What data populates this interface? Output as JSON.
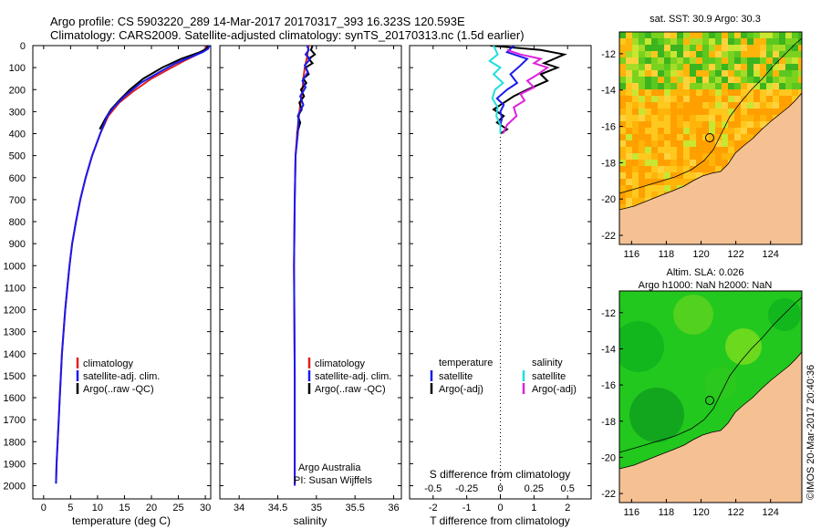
{
  "header": {
    "line1": "Argo profile: CS 5903220_289 14-Mar-2017 20170317_393 16.323S 120.593E",
    "line2": "Climatology: CARS2009. Satellite-adjusted climatology: synTS_20170313.nc (1.5d earlier)"
  },
  "credit": "©IMOS 20-Mar-2017 20:40:36",
  "colors": {
    "climatology": "#dd2222",
    "satellite": "#1a1aee",
    "argo": "#000000",
    "sat_salinity": "#22dddd",
    "argo_salinity": "#dd22dd",
    "land": "#f5c193"
  },
  "chart_data": [
    {
      "type": "line",
      "id": "temperature",
      "xlabel": "temperature (deg C)",
      "xlim": [
        -2,
        31
      ],
      "xticks": [
        "0",
        "5",
        "10",
        "15",
        "20",
        "25",
        "30"
      ],
      "ylim": [
        0,
        2060
      ],
      "yticks": [
        "0",
        "100",
        "200",
        "300",
        "400",
        "500",
        "600",
        "700",
        "800",
        "900",
        "1000",
        "1100",
        "1200",
        "1300",
        "1400",
        "1500",
        "1600",
        "1700",
        "1800",
        "1900",
        "2000"
      ],
      "legend": [
        "climatology",
        "satellite-adj. clim.",
        "Argo(..raw -QC)"
      ],
      "series": [
        {
          "name": "climatology",
          "color": "#dd2222",
          "points": [
            [
              30.3,
              0
            ],
            [
              29.8,
              20
            ],
            [
              28.5,
              40
            ],
            [
              26,
              70
            ],
            [
              23,
              110
            ],
            [
              20,
              150
            ],
            [
              16.5,
              210
            ],
            [
              14,
              260
            ],
            [
              12,
              320
            ],
            [
              10.5,
              400
            ],
            [
              9,
              500
            ],
            [
              7.8,
              600
            ],
            [
              6.8,
              700
            ],
            [
              6,
              800
            ],
            [
              5.3,
              900
            ],
            [
              4.8,
              1000
            ],
            [
              4.4,
              1100
            ],
            [
              4,
              1200
            ],
            [
              3.7,
              1300
            ],
            [
              3.4,
              1400
            ],
            [
              3.2,
              1500
            ],
            [
              3,
              1600
            ],
            [
              2.8,
              1700
            ],
            [
              2.6,
              1800
            ],
            [
              2.4,
              1900
            ],
            [
              2.3,
              1990
            ]
          ]
        },
        {
          "name": "Argo",
          "color": "#000000",
          "points": [
            [
              30.5,
              0
            ],
            [
              30.2,
              15
            ],
            [
              29,
              30
            ],
            [
              25.5,
              60
            ],
            [
              22,
              100
            ],
            [
              18.5,
              150
            ],
            [
              16,
              200
            ],
            [
              14,
              250
            ],
            [
              12.5,
              290
            ],
            [
              11.5,
              330
            ],
            [
              10.4,
              380
            ]
          ]
        },
        {
          "name": "satellite",
          "color": "#1a1aee",
          "points": [
            [
              30.8,
              0
            ],
            [
              30.5,
              15
            ],
            [
              29.5,
              30
            ],
            [
              27.5,
              50
            ],
            [
              24.5,
              80
            ],
            [
              21.5,
              120
            ],
            [
              18,
              170
            ],
            [
              15,
              230
            ],
            [
              13,
              280
            ],
            [
              11.8,
              320
            ],
            [
              10.5,
              400
            ],
            [
              9,
              500
            ],
            [
              7.8,
              600
            ],
            [
              6.8,
              700
            ],
            [
              6,
              800
            ],
            [
              5.3,
              900
            ],
            [
              4.8,
              1000
            ],
            [
              4.4,
              1100
            ],
            [
              4,
              1200
            ],
            [
              3.7,
              1300
            ],
            [
              3.4,
              1400
            ],
            [
              3.2,
              1500
            ],
            [
              3,
              1600
            ],
            [
              2.8,
              1700
            ],
            [
              2.6,
              1800
            ],
            [
              2.4,
              1900
            ],
            [
              2.3,
              1990
            ]
          ]
        }
      ]
    },
    {
      "type": "line",
      "id": "salinity",
      "xlabel": "salinity",
      "xlim": [
        33.75,
        36.1
      ],
      "xticks": [
        "34",
        "34.5",
        "35",
        "35.5",
        "36"
      ],
      "ylim": [
        0,
        2060
      ],
      "legend": [
        "climatology",
        "satellite-adj. clim.",
        "Argo(..raw -QC)"
      ],
      "annotation": [
        "Argo Australia",
        "PI: Susan Wijffels"
      ],
      "series": [
        {
          "name": "climatology",
          "color": "#dd2222",
          "points": [
            [
              34.9,
              0
            ],
            [
              34.88,
              50
            ],
            [
              34.85,
              100
            ],
            [
              34.83,
              150
            ],
            [
              34.82,
              200
            ],
            [
              34.8,
              250
            ],
            [
              34.78,
              300
            ],
            [
              34.75,
              400
            ],
            [
              34.73,
              500
            ],
            [
              34.72,
              700
            ],
            [
              34.71,
              1000
            ],
            [
              34.72,
              1500
            ],
            [
              34.72,
              2000
            ]
          ]
        },
        {
          "name": "Argo",
          "color": "#000000",
          "points": [
            [
              34.95,
              0
            ],
            [
              34.93,
              20
            ],
            [
              34.98,
              40
            ],
            [
              34.9,
              60
            ],
            [
              34.95,
              80
            ],
            [
              34.86,
              100
            ],
            [
              34.9,
              130
            ],
            [
              34.83,
              150
            ],
            [
              34.87,
              170
            ],
            [
              34.8,
              200
            ],
            [
              34.84,
              230
            ],
            [
              34.78,
              260
            ],
            [
              34.81,
              290
            ],
            [
              34.76,
              320
            ],
            [
              34.79,
              350
            ],
            [
              34.75,
              400
            ]
          ]
        },
        {
          "name": "satellite",
          "color": "#1a1aee",
          "points": [
            [
              34.88,
              0
            ],
            [
              34.9,
              20
            ],
            [
              34.86,
              40
            ],
            [
              34.92,
              60
            ],
            [
              34.85,
              90
            ],
            [
              34.89,
              120
            ],
            [
              34.82,
              160
            ],
            [
              34.86,
              190
            ],
            [
              34.79,
              230
            ],
            [
              34.83,
              270
            ],
            [
              34.77,
              310
            ],
            [
              34.76,
              400
            ],
            [
              34.73,
              500
            ],
            [
              34.72,
              700
            ],
            [
              34.71,
              1000
            ],
            [
              34.72,
              1500
            ],
            [
              34.72,
              2000
            ]
          ]
        }
      ]
    },
    {
      "type": "line",
      "id": "differences",
      "xlabel": "T difference from climatology",
      "x2label": "S difference from climatology",
      "xlim": [
        -2.7,
        2.7
      ],
      "xticks": [
        "-2",
        "-1",
        "0",
        "1",
        "2"
      ],
      "x2ticks": [
        "-0.5",
        "-0.25",
        "0",
        "0.25",
        "0.5"
      ],
      "ylim": [
        0,
        2060
      ],
      "legend_headers": [
        "temperature",
        "salinity"
      ],
      "legend": [
        "satellite",
        "Argo(-adj)",
        "satellite",
        "Argo(-adj)"
      ],
      "series": [
        {
          "name": "T Argo(-adj)",
          "color": "#000000",
          "points": [
            [
              -0.3,
              0
            ],
            [
              1.2,
              20
            ],
            [
              1.9,
              40
            ],
            [
              1.6,
              60
            ],
            [
              1.3,
              80
            ],
            [
              1.7,
              100
            ],
            [
              1.2,
              130
            ],
            [
              1.4,
              160
            ],
            [
              0.8,
              200
            ],
            [
              0.4,
              230
            ],
            [
              0.1,
              260
            ],
            [
              -0.2,
              290
            ],
            [
              0.1,
              320
            ],
            [
              -0.1,
              350
            ],
            [
              0.2,
              380
            ],
            [
              0,
              400
            ]
          ]
        },
        {
          "name": "T satellite",
          "color": "#1a1aee",
          "points": [
            [
              0.4,
              0
            ],
            [
              0.2,
              30
            ],
            [
              0.8,
              60
            ],
            [
              0.6,
              90
            ],
            [
              0.3,
              130
            ],
            [
              0.5,
              170
            ],
            [
              0.2,
              200
            ],
            [
              -0.1,
              240
            ],
            [
              0.1,
              270
            ],
            [
              0,
              300
            ],
            [
              0.05,
              330
            ],
            [
              0,
              360
            ],
            [
              0,
              400
            ]
          ]
        },
        {
          "name": "S satellite",
          "color": "#22dddd",
          "points": [
            [
              -0.05,
              0
            ],
            [
              -0.02,
              40
            ],
            [
              -0.08,
              70
            ],
            [
              0,
              100
            ],
            [
              -0.05,
              130
            ],
            [
              0.02,
              170
            ],
            [
              -0.04,
              200
            ],
            [
              -0.06,
              240
            ],
            [
              -0.02,
              280
            ],
            [
              -0.03,
              320
            ],
            [
              0,
              360
            ],
            [
              0,
              400
            ]
          ]
        },
        {
          "name": "S Argo(-adj)",
          "color": "#dd22dd",
          "points": [
            [
              0.05,
              20
            ],
            [
              0.15,
              40
            ],
            [
              0.3,
              60
            ],
            [
              0.25,
              80
            ],
            [
              0.35,
              100
            ],
            [
              0.28,
              130
            ],
            [
              0.2,
              160
            ],
            [
              0.25,
              190
            ],
            [
              0.15,
              220
            ],
            [
              0.18,
              250
            ],
            [
              0.1,
              280
            ],
            [
              0.12,
              320
            ],
            [
              0.05,
              360
            ],
            [
              0.02,
              400
            ]
          ]
        }
      ]
    },
    {
      "type": "heatmap",
      "id": "sst-map",
      "title": "sat. SST: 30.9 Argo: 30.3",
      "xticks": [
        "116",
        "118",
        "120",
        "122",
        "124"
      ],
      "yticks": [
        "-12",
        "-14",
        "-16",
        "-18",
        "-20",
        "-22"
      ],
      "lon": [
        115.3,
        125.8
      ],
      "lat": [
        -22.5,
        -10.8
      ],
      "argo_position": [
        120.593,
        -16.323
      ]
    },
    {
      "type": "heatmap",
      "id": "sla-map",
      "title": "Altim. SLA: 0.026",
      "subtitle": "Argo h1000: NaN h2000: NaN",
      "xticks": [
        "116",
        "118",
        "120",
        "122",
        "124"
      ],
      "yticks": [
        "-12",
        "-14",
        "-16",
        "-18",
        "-20",
        "-22"
      ],
      "lon": [
        115.3,
        125.8
      ],
      "lat": [
        -22.5,
        -10.8
      ],
      "argo_position": [
        120.593,
        -16.323
      ]
    }
  ]
}
